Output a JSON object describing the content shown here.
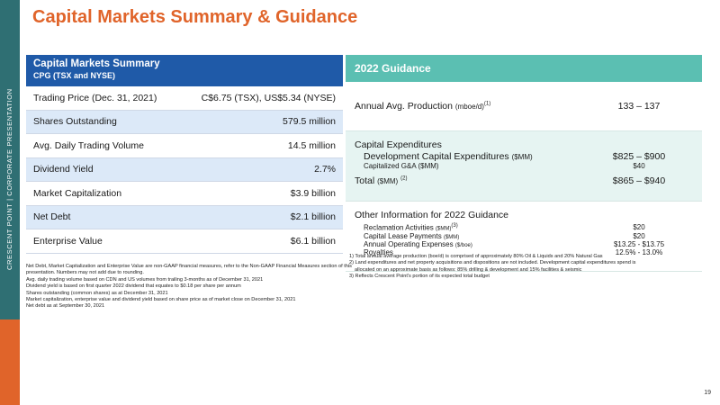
{
  "sidebar": {
    "text": "CRESCENT POINT  |  CORPORATE PRESENTATION"
  },
  "title": "Capital Markets Summary & Guidance",
  "summary": {
    "heading": "Capital Markets Summary",
    "subheading": "CPG (TSX and NYSE)",
    "rows": [
      {
        "label": "Trading Price (Dec. 31, 2021)",
        "value": "C$6.75 (TSX), US$5.34 (NYSE)"
      },
      {
        "label": "Shares Outstanding",
        "value": "579.5 million"
      },
      {
        "label": "Avg. Daily Trading Volume",
        "value": "14.5 million"
      },
      {
        "label": "Dividend Yield",
        "value": "2.7%"
      },
      {
        "label": "Market Capitalization",
        "value": "$3.9 billion"
      },
      {
        "label": "Net Debt",
        "value": "$2.1 billion"
      },
      {
        "label": "Enterprise Value",
        "value": "$6.1 billion"
      }
    ],
    "notes": [
      "Net Debt, Market Capitalization and Enterprise Value are non-GAAP financial measures, refer to the Non-GAAP Financial Measures section of this presentation. Numbers may not add due to rounding.",
      "Avg. daily trading volume based on CDN and US volumes from trailing 3-months as of December 31, 2021",
      "Dividend yield is based on first quarter 2022 dividend that equates to $0.18 per share per annum",
      "Shares outstanding (common shares) as at December 31, 2021",
      "Market capitalization, enterprise value and dividend yield based on share price as of market close on December 31, 2021",
      "Net debt as at September 30, 2021"
    ]
  },
  "guidance": {
    "heading": "2022 Guidance",
    "production": {
      "label": "Annual Avg. Production",
      "unit": "(mboe/d)",
      "sup": "(1)",
      "value": "133 – 137"
    },
    "capex": {
      "label": "Capital Expenditures",
      "dev_label": "Development Capital Expenditures",
      "dev_unit": "($MM)",
      "dev_value": "$825 – $900",
      "cap_label": "Capitalized G&A ($MM)",
      "cap_value": "$40",
      "total_label": "Total",
      "total_unit": "($MM)",
      "total_sup": "(2)",
      "total_value": "$865 – $940"
    },
    "other": {
      "label": "Other Information for 2022 Guidance",
      "items": [
        {
          "label": "Reclamation Activities",
          "unit": "($MM)",
          "sup": "(3)",
          "value": "$20"
        },
        {
          "label": "Capital Lease Payments",
          "unit": "($MM)",
          "sup": "",
          "value": "$20"
        },
        {
          "label": "Annual Operating Expenses",
          "unit": "($/boe)",
          "sup": "",
          "value": "$13.25 - $13.75"
        },
        {
          "label": "Royalties",
          "unit": "",
          "sup": "",
          "value": "12.5% - 13.0%"
        }
      ]
    },
    "notes": [
      "1) Total annual average production (boe/d) is comprised of approximately 80% Oil & Liquids and 20% Natural Gas",
      "2) Land expenditures and net property acquisitions and dispositions are not included. Development capital expenditures spend is",
      "allocated on an approximate basis as follows: 85% drilling & development and 15% facilities & seismic",
      "3) Reflects Crescent Point's portion of its expected total budget"
    ]
  },
  "page_number": "19",
  "colors": {
    "accent_orange": "#e0642a",
    "summary_blue": "#1f5aa8",
    "guidance_teal": "#5bbfb2",
    "sidebar_teal": "#2f6f73"
  }
}
